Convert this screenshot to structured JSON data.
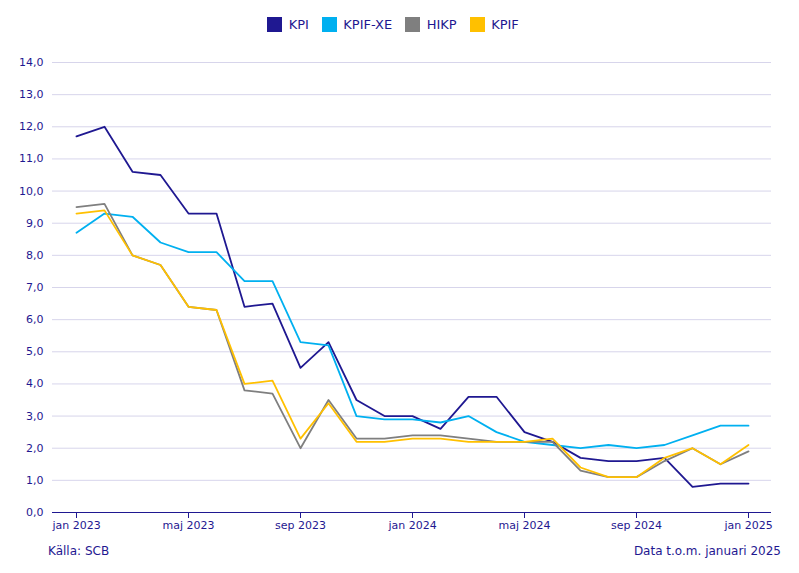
{
  "chart_data": {
    "type": "line",
    "categories": [
      "jan 2023",
      null,
      null,
      null,
      "maj 2023",
      null,
      null,
      null,
      "sep 2023",
      null,
      null,
      null,
      "jan 2024",
      null,
      null,
      null,
      "maj 2024",
      null,
      null,
      null,
      "sep 2024",
      null,
      null,
      null,
      "jan 2025"
    ],
    "series": [
      {
        "name": "KPI",
        "color": "#1f1891",
        "values": [
          11.7,
          12.0,
          10.6,
          10.5,
          9.3,
          9.3,
          6.4,
          6.5,
          4.5,
          5.3,
          3.5,
          3.0,
          3.0,
          2.6,
          3.6,
          3.6,
          2.5,
          2.2,
          1.7,
          1.6,
          1.6,
          1.7,
          0.8,
          0.9,
          0.9
        ]
      },
      {
        "name": "KPIF-XE",
        "color": "#00b0f0",
        "values": [
          8.7,
          9.3,
          9.2,
          8.4,
          8.1,
          8.1,
          7.2,
          7.2,
          5.3,
          5.2,
          3.0,
          2.9,
          2.9,
          2.8,
          3.0,
          2.5,
          2.2,
          2.1,
          2.0,
          2.1,
          2.0,
          2.1,
          2.4,
          2.7,
          2.7
        ]
      },
      {
        "name": "HIKP",
        "color": "#7f7f7f",
        "values": [
          9.5,
          9.6,
          8.0,
          7.7,
          6.4,
          6.3,
          3.8,
          3.7,
          2.0,
          3.5,
          2.3,
          2.3,
          2.4,
          2.4,
          2.3,
          2.2,
          2.2,
          2.2,
          1.3,
          1.1,
          1.1,
          1.6,
          2.0,
          1.5,
          1.9
        ]
      },
      {
        "name": "KPIF",
        "color": "#ffc000",
        "values": [
          9.3,
          9.4,
          8.0,
          7.7,
          6.4,
          6.3,
          4.0,
          4.1,
          2.3,
          3.4,
          2.2,
          2.2,
          2.3,
          2.3,
          2.2,
          2.2,
          2.2,
          2.3,
          1.4,
          1.1,
          1.1,
          1.7,
          2.0,
          1.5,
          2.1
        ]
      }
    ],
    "ylim": [
      0.0,
      14.0
    ],
    "yticks": [
      {
        "value": 0.0,
        "label": "0,0"
      },
      {
        "value": 1.0,
        "label": "1,0"
      },
      {
        "value": 2.0,
        "label": "2,0"
      },
      {
        "value": 3.0,
        "label": "3,0"
      },
      {
        "value": 4.0,
        "label": "4,0"
      },
      {
        "value": 5.0,
        "label": "5,0"
      },
      {
        "value": 6.0,
        "label": "6,0"
      },
      {
        "value": 7.0,
        "label": "7,0"
      },
      {
        "value": 8.0,
        "label": "8,0"
      },
      {
        "value": 9.0,
        "label": "9,0"
      },
      {
        "value": 10.0,
        "label": "10,0"
      },
      {
        "value": 11.0,
        "label": "11,0"
      },
      {
        "value": 12.0,
        "label": "12,0"
      },
      {
        "value": 13.0,
        "label": "13,0"
      },
      {
        "value": 14.0,
        "label": "14,0"
      }
    ],
    "grid": true,
    "legend": "top",
    "annotations": [
      "Källa: SCB",
      "Data t.o.m. januari 2025"
    ]
  }
}
